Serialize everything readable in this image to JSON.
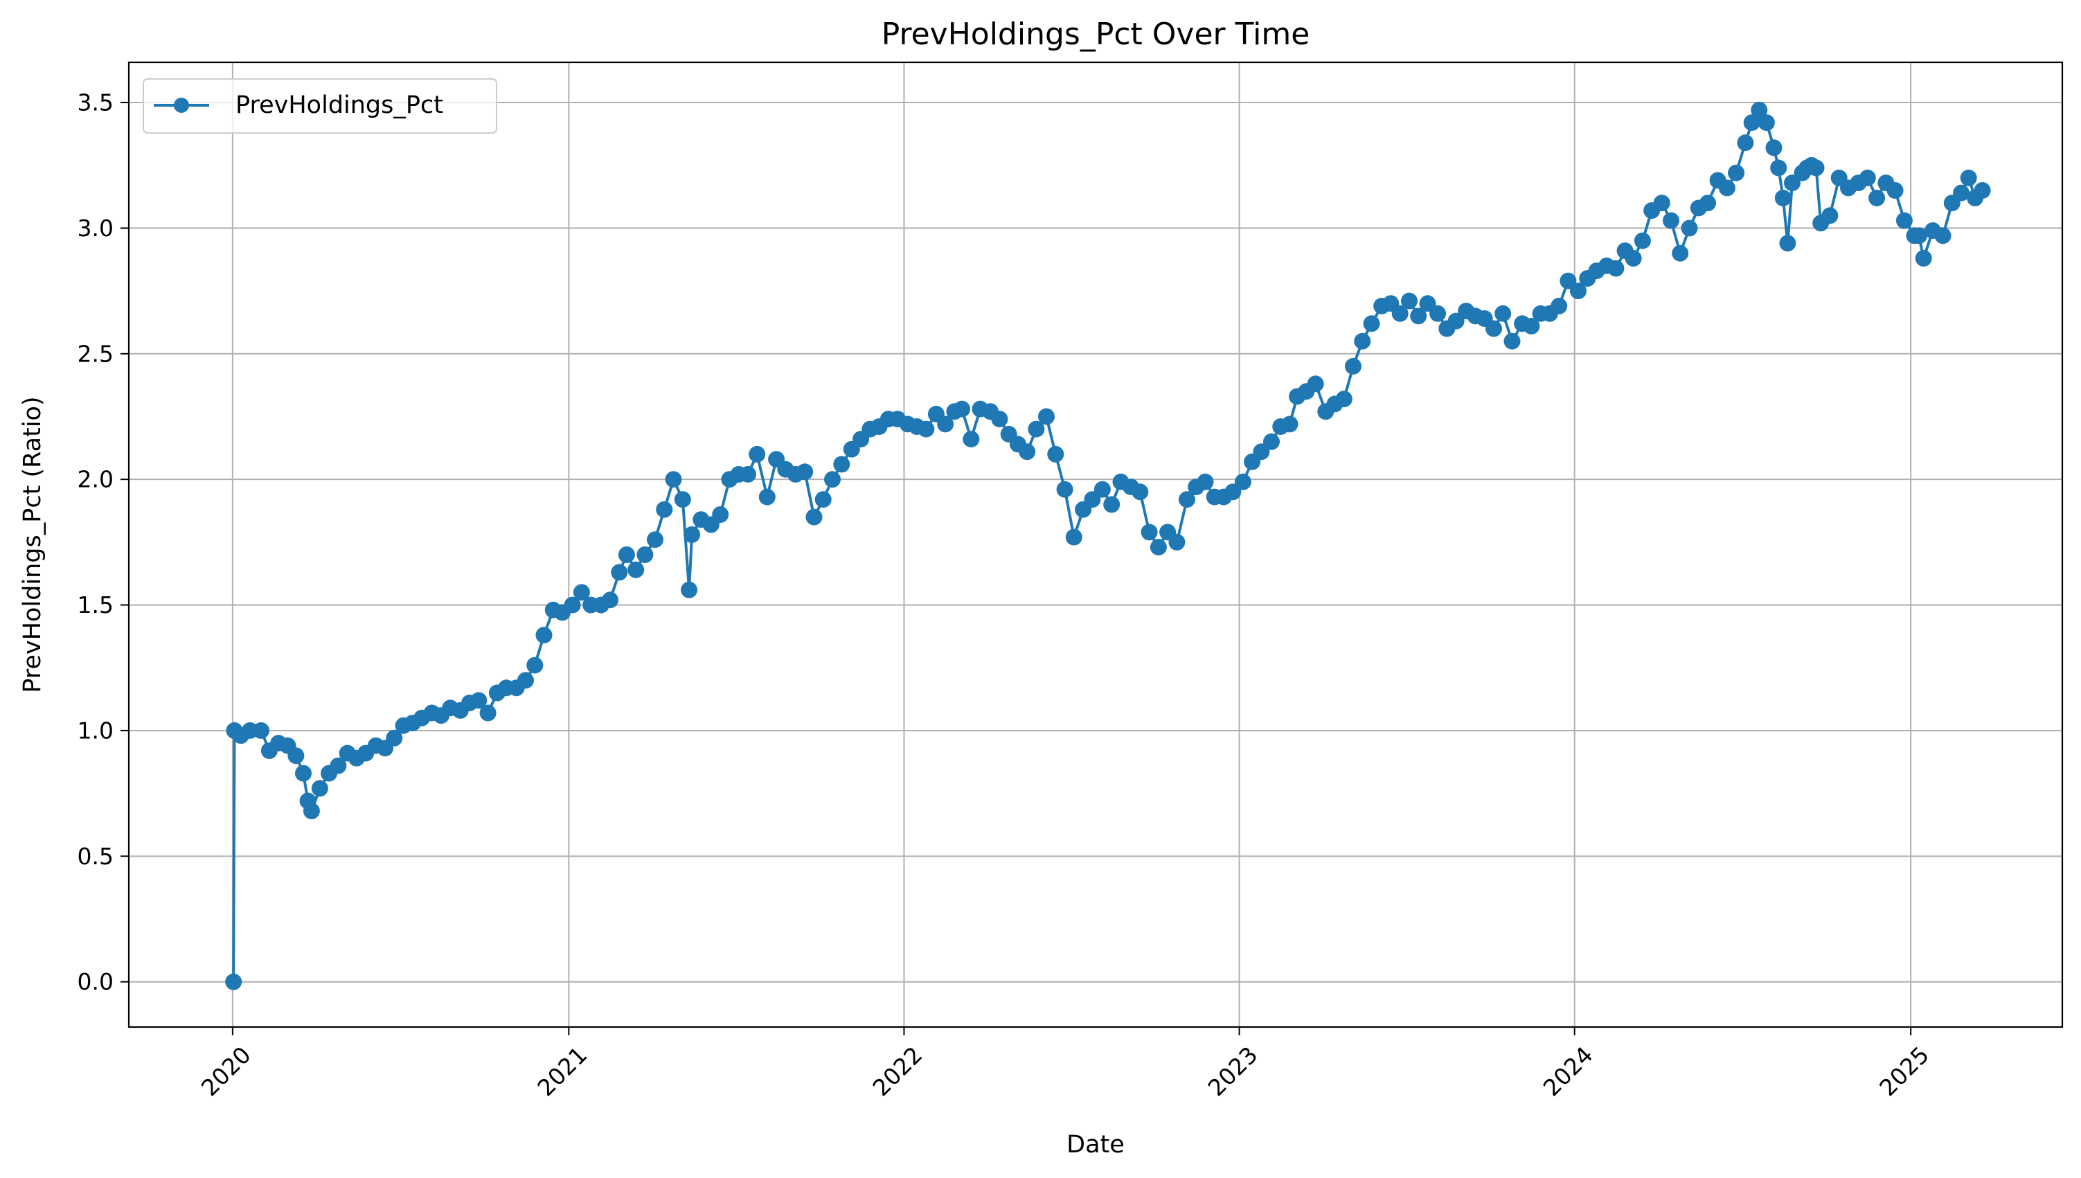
{
  "chart_data": {
    "type": "line",
    "title": "PrevHoldings_Pct Over Time",
    "xlabel": "Date",
    "ylabel": "PrevHoldings_Pct (Ratio)",
    "x_type": "date",
    "xlim": [
      "2019-09-10",
      "2025-06-15"
    ],
    "ylim": [
      -0.18,
      3.66
    ],
    "x_ticks": [
      "2020-01-01",
      "2021-01-01",
      "2022-01-01",
      "2023-01-01",
      "2024-01-01",
      "2025-01-01"
    ],
    "x_tick_labels": [
      "2020",
      "2021",
      "2022",
      "2023",
      "2024",
      "2025"
    ],
    "y_ticks": [
      0.0,
      0.5,
      1.0,
      1.5,
      2.0,
      2.5,
      3.0,
      3.5
    ],
    "y_tick_labels": [
      "0.0",
      "0.5",
      "1.0",
      "1.5",
      "2.0",
      "2.5",
      "3.0",
      "3.5"
    ],
    "grid": true,
    "legend_position": "upper-left",
    "series": [
      {
        "name": "PrevHoldings_Pct",
        "color": "#1f77b4",
        "marker": "circle",
        "x": [
          "2020-01-02",
          "2020-01-03",
          "2020-01-10",
          "2020-01-20",
          "2020-02-01",
          "2020-02-10",
          "2020-02-20",
          "2020-03-01",
          "2020-03-10",
          "2020-03-18",
          "2020-03-23",
          "2020-03-27",
          "2020-04-05",
          "2020-04-15",
          "2020-04-25",
          "2020-05-05",
          "2020-05-15",
          "2020-05-25",
          "2020-06-05",
          "2020-06-15",
          "2020-06-25",
          "2020-07-05",
          "2020-07-15",
          "2020-07-25",
          "2020-08-05",
          "2020-08-15",
          "2020-08-25",
          "2020-09-05",
          "2020-09-15",
          "2020-09-25",
          "2020-10-05",
          "2020-10-15",
          "2020-10-25",
          "2020-11-05",
          "2020-11-15",
          "2020-11-25",
          "2020-12-05",
          "2020-12-15",
          "2020-12-25",
          "2021-01-05",
          "2021-01-15",
          "2021-01-25",
          "2021-02-05",
          "2021-02-15",
          "2021-02-25",
          "2021-03-05",
          "2021-03-15",
          "2021-03-25",
          "2021-04-05",
          "2021-04-15",
          "2021-04-25",
          "2021-05-05",
          "2021-05-12",
          "2021-05-15",
          "2021-05-25",
          "2021-06-05",
          "2021-06-15",
          "2021-06-25",
          "2021-07-05",
          "2021-07-15",
          "2021-07-25",
          "2021-08-05",
          "2021-08-15",
          "2021-08-25",
          "2021-09-05",
          "2021-09-15",
          "2021-09-25",
          "2021-10-05",
          "2021-10-15",
          "2021-10-25",
          "2021-11-05",
          "2021-11-15",
          "2021-11-25",
          "2021-12-05",
          "2021-12-15",
          "2021-12-25",
          "2022-01-05",
          "2022-01-15",
          "2022-01-25",
          "2022-02-05",
          "2022-02-15",
          "2022-02-25",
          "2022-03-05",
          "2022-03-15",
          "2022-03-25",
          "2022-04-05",
          "2022-04-15",
          "2022-04-25",
          "2022-05-05",
          "2022-05-15",
          "2022-05-25",
          "2022-06-05",
          "2022-06-15",
          "2022-06-25",
          "2022-07-05",
          "2022-07-15",
          "2022-07-25",
          "2022-08-05",
          "2022-08-15",
          "2022-08-25",
          "2022-09-05",
          "2022-09-15",
          "2022-09-25",
          "2022-10-05",
          "2022-10-15",
          "2022-10-25",
          "2022-11-05",
          "2022-11-15",
          "2022-11-25",
          "2022-12-05",
          "2022-12-15",
          "2022-12-25",
          "2023-01-05",
          "2023-01-15",
          "2023-01-25",
          "2023-02-05",
          "2023-02-15",
          "2023-02-25",
          "2023-03-05",
          "2023-03-15",
          "2023-03-25",
          "2023-04-05",
          "2023-04-15",
          "2023-04-25",
          "2023-05-05",
          "2023-05-15",
          "2023-05-25",
          "2023-06-05",
          "2023-06-15",
          "2023-06-25",
          "2023-07-05",
          "2023-07-15",
          "2023-07-25",
          "2023-08-05",
          "2023-08-15",
          "2023-08-25",
          "2023-09-05",
          "2023-09-15",
          "2023-09-25",
          "2023-10-05",
          "2023-10-15",
          "2023-10-25",
          "2023-11-05",
          "2023-11-15",
          "2023-11-25",
          "2023-12-05",
          "2023-12-15",
          "2023-12-25",
          "2024-01-05",
          "2024-01-15",
          "2024-01-25",
          "2024-02-05",
          "2024-02-15",
          "2024-02-25",
          "2024-03-05",
          "2024-03-15",
          "2024-03-25",
          "2024-04-05",
          "2024-04-15",
          "2024-04-25",
          "2024-05-05",
          "2024-05-15",
          "2024-05-25",
          "2024-06-05",
          "2024-06-15",
          "2024-06-25",
          "2024-07-05",
          "2024-07-12",
          "2024-07-20",
          "2024-07-28",
          "2024-08-05",
          "2024-08-10",
          "2024-08-15",
          "2024-08-20",
          "2024-08-25",
          "2024-09-05",
          "2024-09-10",
          "2024-09-15",
          "2024-09-20",
          "2024-09-25",
          "2024-10-05",
          "2024-10-15",
          "2024-10-25",
          "2024-11-05",
          "2024-11-15",
          "2024-11-25",
          "2024-12-05",
          "2024-12-15",
          "2024-12-25",
          "2025-01-05",
          "2025-01-10",
          "2025-01-15",
          "2025-01-25",
          "2025-02-05",
          "2025-02-15",
          "2025-02-25",
          "2025-03-05",
          "2025-03-12",
          "2025-03-20"
        ],
        "y": [
          0.0,
          1.0,
          0.98,
          1.0,
          1.0,
          0.92,
          0.95,
          0.94,
          0.9,
          0.83,
          0.72,
          0.68,
          0.77,
          0.83,
          0.86,
          0.91,
          0.89,
          0.91,
          0.94,
          0.93,
          0.97,
          1.02,
          1.03,
          1.05,
          1.07,
          1.06,
          1.09,
          1.08,
          1.11,
          1.12,
          1.07,
          1.15,
          1.17,
          1.17,
          1.2,
          1.26,
          1.38,
          1.48,
          1.47,
          1.5,
          1.55,
          1.5,
          1.5,
          1.52,
          1.63,
          1.7,
          1.64,
          1.7,
          1.76,
          1.88,
          2.0,
          1.92,
          1.56,
          1.78,
          1.84,
          1.82,
          1.86,
          2.0,
          2.02,
          2.02,
          2.1,
          1.93,
          2.08,
          2.04,
          2.02,
          2.03,
          1.85,
          1.92,
          2.0,
          2.06,
          2.12,
          2.16,
          2.2,
          2.21,
          2.24,
          2.24,
          2.22,
          2.21,
          2.2,
          2.26,
          2.22,
          2.27,
          2.28,
          2.16,
          2.28,
          2.27,
          2.24,
          2.18,
          2.14,
          2.11,
          2.2,
          2.25,
          2.1,
          1.96,
          1.77,
          1.88,
          1.92,
          1.96,
          1.9,
          1.99,
          1.97,
          1.95,
          1.79,
          1.73,
          1.79,
          1.75,
          1.92,
          1.97,
          1.99,
          1.93,
          1.93,
          1.95,
          1.99,
          2.07,
          2.11,
          2.15,
          2.21,
          2.22,
          2.33,
          2.35,
          2.38,
          2.27,
          2.3,
          2.32,
          2.45,
          2.55,
          2.62,
          2.69,
          2.7,
          2.66,
          2.71,
          2.65,
          2.7,
          2.66,
          2.6,
          2.63,
          2.67,
          2.65,
          2.64,
          2.6,
          2.66,
          2.55,
          2.62,
          2.61,
          2.66,
          2.66,
          2.69,
          2.79,
          2.75,
          2.8,
          2.83,
          2.85,
          2.84,
          2.91,
          2.88,
          2.95,
          3.07,
          3.1,
          3.03,
          2.9,
          3.0,
          3.08,
          3.1,
          3.19,
          3.16,
          3.22,
          3.34,
          3.42,
          3.47,
          3.42,
          3.32,
          3.24,
          3.12,
          2.94,
          3.18,
          3.22,
          3.24,
          3.25,
          3.24,
          3.02,
          3.05,
          3.2,
          3.16,
          3.18,
          3.2,
          3.12,
          3.18,
          3.15,
          3.03,
          2.97,
          2.97,
          2.88,
          2.99,
          2.97,
          3.1,
          3.14,
          3.2,
          3.12,
          3.15
        ]
      }
    ]
  }
}
